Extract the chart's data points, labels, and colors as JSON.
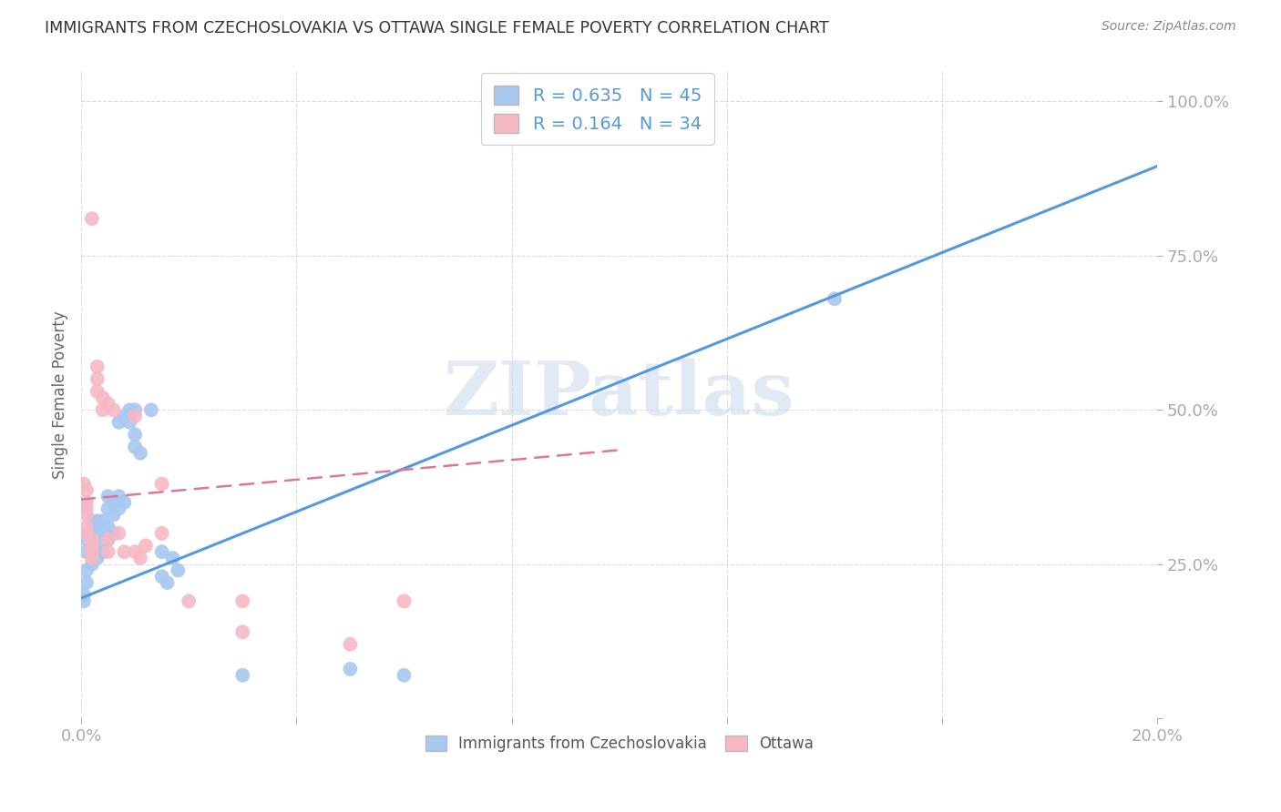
{
  "title": "IMMIGRANTS FROM CZECHOSLOVAKIA VS OTTAWA SINGLE FEMALE POVERTY CORRELATION CHART",
  "source": "Source: ZipAtlas.com",
  "ylabel": "Single Female Poverty",
  "xlim": [
    0.0,
    0.2
  ],
  "ylim": [
    0.0,
    1.05
  ],
  "blue_scatter": [
    [
      0.0005,
      0.2
    ],
    [
      0.001,
      0.22
    ],
    [
      0.001,
      0.24
    ],
    [
      0.001,
      0.27
    ],
    [
      0.001,
      0.29
    ],
    [
      0.002,
      0.25
    ],
    [
      0.002,
      0.28
    ],
    [
      0.002,
      0.3
    ],
    [
      0.002,
      0.32
    ],
    [
      0.003,
      0.26
    ],
    [
      0.003,
      0.28
    ],
    [
      0.003,
      0.3
    ],
    [
      0.003,
      0.32
    ],
    [
      0.004,
      0.27
    ],
    [
      0.004,
      0.3
    ],
    [
      0.004,
      0.32
    ],
    [
      0.005,
      0.29
    ],
    [
      0.005,
      0.31
    ],
    [
      0.005,
      0.34
    ],
    [
      0.005,
      0.36
    ],
    [
      0.006,
      0.3
    ],
    [
      0.006,
      0.33
    ],
    [
      0.006,
      0.35
    ],
    [
      0.007,
      0.34
    ],
    [
      0.007,
      0.36
    ],
    [
      0.007,
      0.48
    ],
    [
      0.008,
      0.35
    ],
    [
      0.008,
      0.49
    ],
    [
      0.009,
      0.5
    ],
    [
      0.009,
      0.48
    ],
    [
      0.01,
      0.5
    ],
    [
      0.01,
      0.46
    ],
    [
      0.01,
      0.44
    ],
    [
      0.011,
      0.43
    ],
    [
      0.013,
      0.5
    ],
    [
      0.015,
      0.27
    ],
    [
      0.015,
      0.23
    ],
    [
      0.016,
      0.22
    ],
    [
      0.017,
      0.26
    ],
    [
      0.018,
      0.24
    ],
    [
      0.03,
      0.07
    ],
    [
      0.05,
      0.08
    ],
    [
      0.06,
      0.07
    ],
    [
      0.14,
      0.68
    ],
    [
      0.0005,
      0.19
    ]
  ],
  "pink_scatter": [
    [
      0.0005,
      0.38
    ],
    [
      0.001,
      0.37
    ],
    [
      0.001,
      0.35
    ],
    [
      0.001,
      0.34
    ],
    [
      0.001,
      0.33
    ],
    [
      0.001,
      0.31
    ],
    [
      0.001,
      0.3
    ],
    [
      0.002,
      0.29
    ],
    [
      0.002,
      0.28
    ],
    [
      0.002,
      0.27
    ],
    [
      0.002,
      0.26
    ],
    [
      0.003,
      0.53
    ],
    [
      0.003,
      0.57
    ],
    [
      0.003,
      0.55
    ],
    [
      0.004,
      0.52
    ],
    [
      0.004,
      0.5
    ],
    [
      0.005,
      0.51
    ],
    [
      0.005,
      0.29
    ],
    [
      0.005,
      0.27
    ],
    [
      0.006,
      0.5
    ],
    [
      0.007,
      0.3
    ],
    [
      0.008,
      0.27
    ],
    [
      0.01,
      0.49
    ],
    [
      0.01,
      0.27
    ],
    [
      0.011,
      0.26
    ],
    [
      0.012,
      0.28
    ],
    [
      0.015,
      0.38
    ],
    [
      0.02,
      0.19
    ],
    [
      0.03,
      0.19
    ],
    [
      0.002,
      0.81
    ],
    [
      0.015,
      0.3
    ],
    [
      0.06,
      0.19
    ],
    [
      0.03,
      0.14
    ],
    [
      0.05,
      0.12
    ]
  ],
  "blue_line": [
    0.0,
    0.195,
    0.2,
    0.895
  ],
  "pink_line": [
    0.0,
    0.355,
    0.1,
    0.435
  ],
  "blue_color": "#a8c8f0",
  "pink_color": "#f5b8c4",
  "blue_line_color": "#5599dd",
  "pink_line_color": "#dd7799",
  "watermark": "ZIPatlas",
  "watermark_color": "#c8d8ec",
  "background_color": "#ffffff",
  "grid_color": "#dddddd"
}
